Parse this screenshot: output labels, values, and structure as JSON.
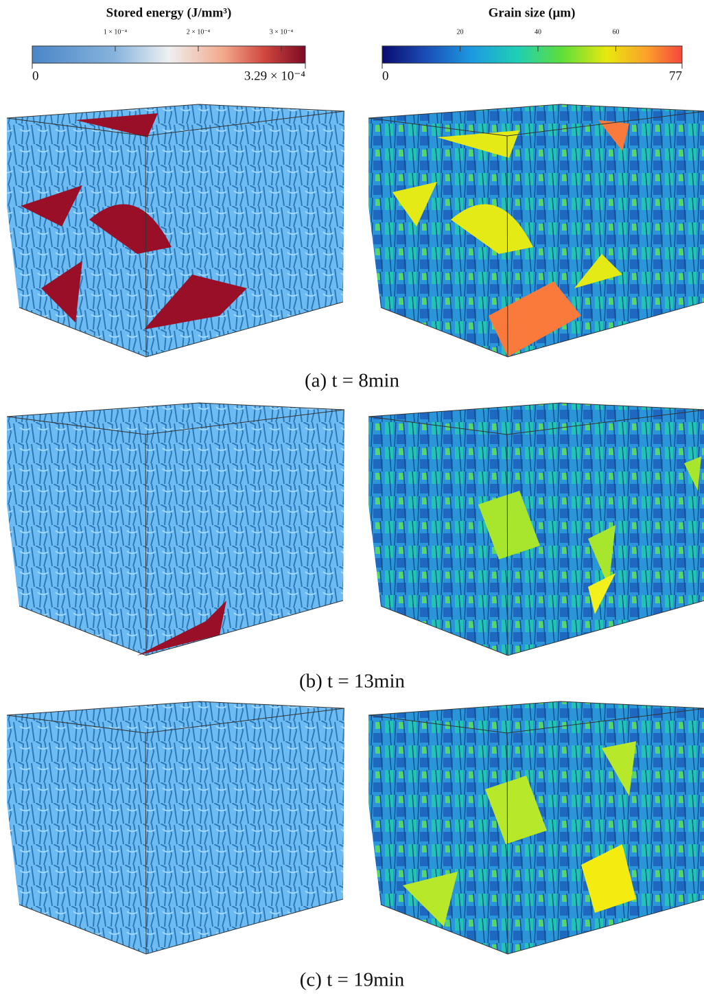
{
  "colorbars": [
    {
      "title": "Stored energy (J/mm³)",
      "range": [
        0,
        {
          "value": 0.000329,
          "label": "3.29 × 10⁻⁴"
        }
      ],
      "ticks": [
        {
          "value": 0.0001,
          "label": "1 × 10⁻⁴"
        },
        {
          "value": 0.0002,
          "label": "2 × 10⁻⁴"
        },
        {
          "value": 0.0003,
          "label": "3 × 10⁻⁴"
        }
      ]
    },
    {
      "title": "Grain size (μm)",
      "range": [
        0,
        77
      ],
      "ticks": [
        20,
        40,
        60
      ]
    }
  ],
  "captions": [
    "(a) t = 8min",
    "(b) t = 13min",
    "(c) t = 19min"
  ]
}
